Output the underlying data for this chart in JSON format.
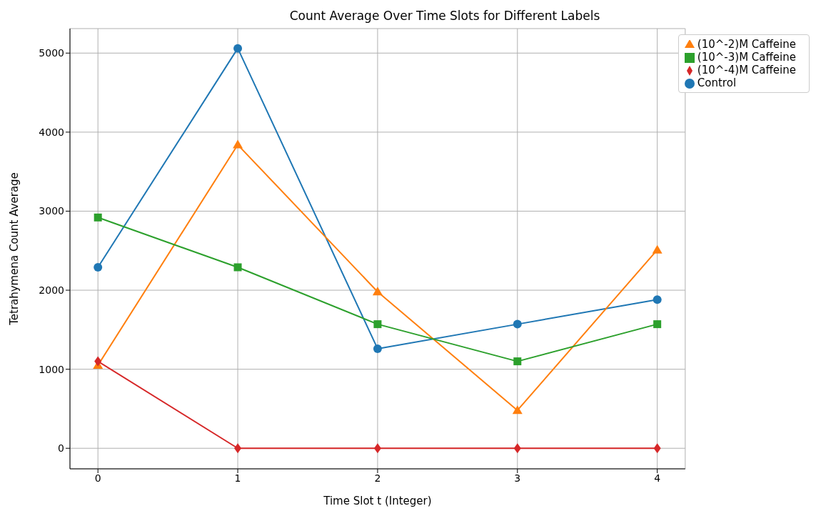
{
  "chart_data": {
    "type": "line",
    "title": "Count Average Over Time Slots for Different Labels",
    "xlabel": "Time Slot t (Integer)",
    "ylabel": "Tetrahymena Count Average",
    "x": [
      0,
      1,
      2,
      3,
      4
    ],
    "series": [
      {
        "name": "Control",
        "color": "#1f77b4",
        "marker": "circle",
        "values": [
          2290,
          5060,
          1260,
          1570,
          1880
        ]
      },
      {
        "name": "(10^-2)M Caffeine",
        "color": "#ff7f0e",
        "marker": "triangle",
        "values": [
          1050,
          3840,
          1980,
          480,
          2510
        ]
      },
      {
        "name": "(10^-3)M Caffeine",
        "color": "#2ca02c",
        "marker": "square",
        "values": [
          2920,
          2290,
          1570,
          1100,
          1570
        ]
      },
      {
        "name": "(10^-4)M Caffeine",
        "color": "#d62728",
        "marker": "diamond",
        "values": [
          1100,
          0,
          0,
          0,
          0
        ]
      }
    ],
    "xlim": [
      -0.2,
      4.2
    ],
    "xticks": [
      0,
      1,
      2,
      3,
      4
    ],
    "ylim": [
      -260,
      5310
    ],
    "yticks": [
      0,
      1000,
      2000,
      3000,
      4000,
      5000
    ],
    "grid": true,
    "legend": "top right",
    "line_style": "solid"
  }
}
